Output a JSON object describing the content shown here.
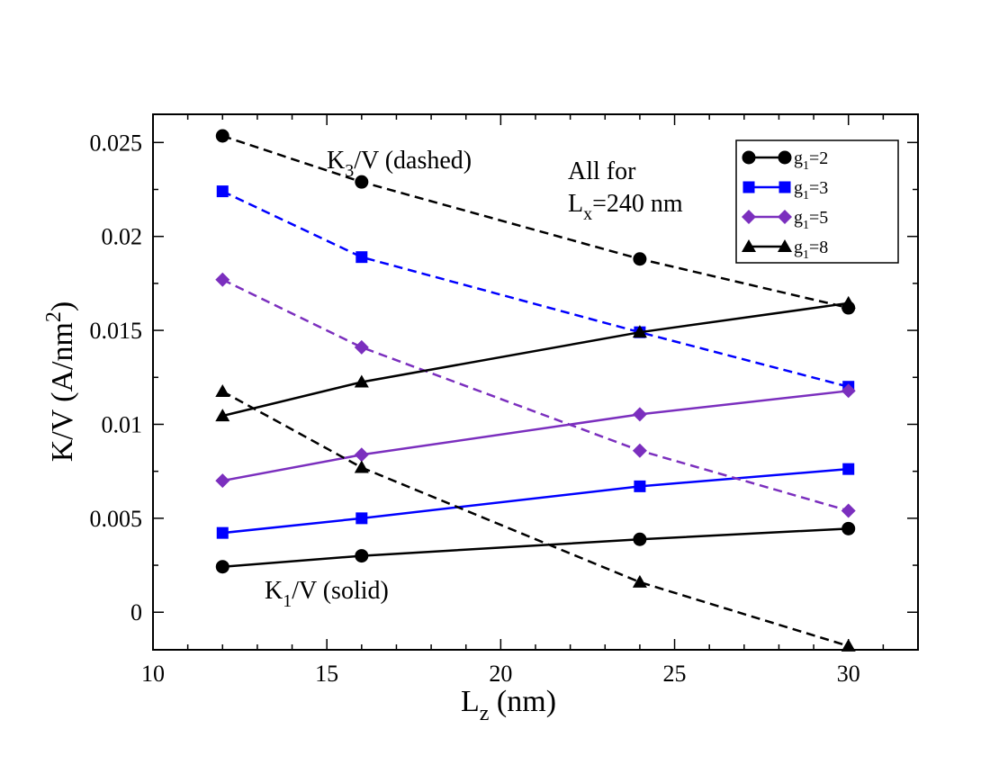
{
  "chart_data": {
    "type": "line",
    "title": "",
    "x": [
      12,
      16,
      24,
      30
    ],
    "xlim": [
      10,
      32
    ],
    "ylim": [
      -0.002,
      0.0265
    ],
    "x_ticks": [
      "10",
      "15",
      "20",
      "25",
      "30"
    ],
    "y_ticks": [
      "0",
      "0.005",
      "0.01",
      "0.015",
      "0.02",
      "0.025"
    ],
    "x_tick_values": [
      10,
      15,
      20,
      25,
      30
    ],
    "y_tick_values": [
      0,
      0.005,
      0.01,
      0.015,
      0.02,
      0.025
    ],
    "xlabel": {
      "main": "L",
      "sub": "z",
      "rest": " (nm)"
    },
    "ylabel": {
      "main": "K/V (A/nm",
      "sup": "2",
      "rest": ")"
    },
    "annotations": {
      "k3": {
        "main": "K",
        "sub": "3",
        "rest": "/V (dashed)"
      },
      "k1": {
        "main": "K",
        "sub": "1",
        "rest": "/V (solid)"
      },
      "all_for": "All for",
      "lx": {
        "main": "L",
        "sub": "x",
        "rest": "=240 nm"
      }
    },
    "legend_position": "top-right",
    "series": [
      {
        "name": "g1=2",
        "legend": {
          "main": "g",
          "sub": "1",
          "rest": "=2"
        },
        "color": "#000000",
        "marker": "circle",
        "k1": [
          0.00242,
          0.003,
          0.00388,
          0.00445
        ],
        "k3": [
          0.02535,
          0.0229,
          0.0188,
          0.0162
        ]
      },
      {
        "name": "g1=3",
        "legend": {
          "main": "g",
          "sub": "1",
          "rest": "=3"
        },
        "color": "#0000ff",
        "marker": "square",
        "k1": [
          0.00422,
          0.005,
          0.0067,
          0.00762
        ],
        "k3": [
          0.0224,
          0.0189,
          0.0149,
          0.012
        ]
      },
      {
        "name": "g1=5",
        "legend": {
          "main": "g",
          "sub": "1",
          "rest": "=5"
        },
        "color": "#7b2fbe",
        "marker": "diamond",
        "k1": [
          0.007,
          0.00838,
          0.01053,
          0.01178
        ],
        "k3": [
          0.0177,
          0.0141,
          0.0086,
          0.0054
        ]
      },
      {
        "name": "g1=8",
        "legend": {
          "main": "g",
          "sub": "1",
          "rest": "=8"
        },
        "color": "#000000",
        "marker": "triangle",
        "k1": [
          0.01045,
          0.01225,
          0.0149,
          0.01645
        ],
        "k3": [
          0.01175,
          0.0077,
          0.0016,
          -0.0018
        ]
      }
    ]
  }
}
